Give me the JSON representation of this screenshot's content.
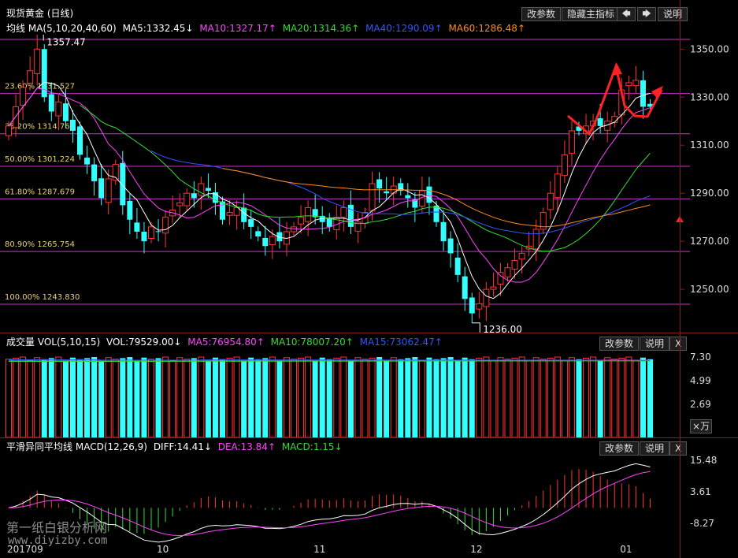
{
  "title": "现货黄金 (日线)",
  "toolbar": {
    "params_label": "改参数",
    "hide_label": "隐藏主指标",
    "left_arrow": "🡄",
    "right_arrow": "🡆",
    "explain_label": "说明",
    "close_label": "X",
    "unit_label": "×万"
  },
  "main_indicator": {
    "name": "均线",
    "params": "MA(5,10,20,40,60)",
    "values": [
      {
        "text": "MA5:1332.45↓",
        "color": "#ffffff"
      },
      {
        "text": "MA10:1327.17↑",
        "color": "#ff44ff"
      },
      {
        "text": "MA20:1314.36↑",
        "color": "#33dd33"
      },
      {
        "text": "MA40:1290.09↑",
        "color": "#3355ff"
      },
      {
        "text": "MA60:1286.48↑",
        "color": "#ff8a1a"
      }
    ]
  },
  "volume_indicator": {
    "name": "成交量",
    "params": "VOL(5,10,15)",
    "values": [
      {
        "text": "VOL:79529.00↓",
        "color": "#ffffff"
      },
      {
        "text": "MA5:76954.80↑",
        "color": "#ff44ff"
      },
      {
        "text": "MA10:78007.20↑",
        "color": "#33dd33"
      },
      {
        "text": "MA15:73062.47↑",
        "color": "#3355ff"
      }
    ],
    "axis": [
      "7.30",
      "4.99",
      "2.69"
    ]
  },
  "macd_indicator": {
    "name": "平滑异同平均线",
    "params": "MACD(12,26,9)",
    "values": [
      {
        "text": "DIFF:14.41↓",
        "color": "#ffffff"
      },
      {
        "text": "DEA:13.84↑",
        "color": "#ff44ff"
      },
      {
        "text": "MACD:1.15↓",
        "color": "#33dd33"
      }
    ],
    "axis": [
      "15.48",
      "3.61",
      "-8.27"
    ]
  },
  "watermark": {
    "line1": "第一纸白银分析网",
    "line2": "www.diyizby.com"
  },
  "chart_data": {
    "type": "candlestick",
    "price_axis": [
      "1350.00",
      "1330.00",
      "1310.00",
      "1290.00",
      "1270.00",
      "1250.00"
    ],
    "ylim": [
      1232,
      1356
    ],
    "x_ticks": [
      {
        "label": "201709",
        "index": 0
      },
      {
        "label": "10",
        "index": 21
      },
      {
        "label": "11",
        "index": 43
      },
      {
        "label": "12",
        "index": 65
      },
      {
        "label": "01",
        "index": 86
      }
    ],
    "annotations": {
      "high": "1357.47",
      "low": "1236.00"
    },
    "fibonacci": [
      {
        "label": "23.60%",
        "value": "1331.527",
        "price": 1331.527
      },
      {
        "label": "38.20%",
        "value": "1314.768",
        "price": 1314.768
      },
      {
        "label": "50.00%",
        "value": "1301.224",
        "price": 1301.224
      },
      {
        "label": "61.80%",
        "value": "1287.679",
        "price": 1287.679
      },
      {
        "label": "80.90%",
        "value": "1265.754",
        "price": 1265.754
      },
      {
        "label": "100.00%",
        "value": "1243.830",
        "price": 1243.83
      }
    ],
    "closes": [
      1318,
      1326,
      1334,
      1341,
      1350,
      1330,
      1324,
      1328,
      1320,
      1316,
      1306,
      1302,
      1295,
      1288,
      1296,
      1302,
      1285,
      1279,
      1274,
      1270,
      1276,
      1274,
      1280,
      1283,
      1286,
      1290,
      1288,
      1294,
      1291,
      1286,
      1279,
      1282,
      1284,
      1278,
      1276,
      1272,
      1268,
      1272,
      1270,
      1274,
      1276,
      1280,
      1284,
      1280,
      1278,
      1276,
      1280,
      1284,
      1276,
      1278,
      1282,
      1294,
      1292,
      1290,
      1293,
      1291,
      1288,
      1284,
      1291,
      1286,
      1278,
      1270,
      1265,
      1256,
      1246,
      1240,
      1244,
      1250,
      1251,
      1257,
      1259,
      1262,
      1265,
      1268,
      1275,
      1282,
      1290,
      1298,
      1306,
      1316,
      1316,
      1318,
      1320,
      1318,
      1320,
      1322,
      1333,
      1336,
      1337,
      1326,
      1326
    ]
  }
}
